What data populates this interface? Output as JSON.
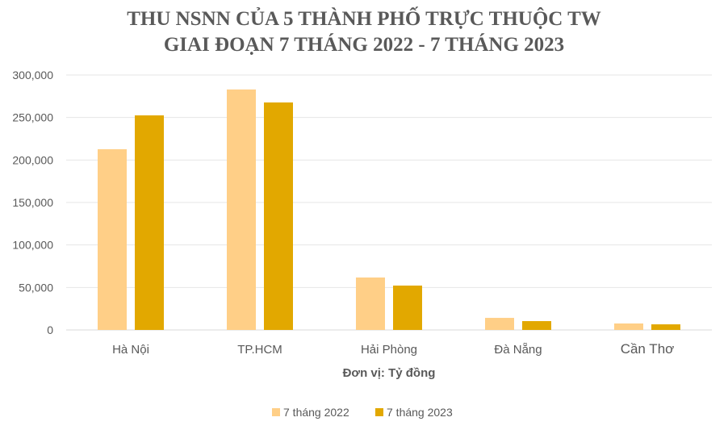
{
  "chart_data": {
    "type": "bar",
    "title_line1": "THU NSNN CỦA 5 THÀNH PHỐ TRỰC THUỘC TW",
    "title_line2": "GIAI ĐOẠN 7 THÁNG 2022 - 7 THÁNG 2023",
    "xlabel": "Đơn vị: Tỷ đồng",
    "ylabel": "",
    "ylim": [
      0,
      300000
    ],
    "yticks": [
      "0",
      "50,000",
      "100,000",
      "150,000",
      "200,000",
      "250,000",
      "300,000"
    ],
    "grid": true,
    "legend_position": "bottom",
    "categories": [
      "Hà Nội",
      "TP.HCM",
      "Hải Phòng",
      "Đà Nẵng",
      "Cần Thơ"
    ],
    "series": [
      {
        "name": "7 tháng 2022",
        "color": "#FFCF87",
        "values": [
          212700,
          283000,
          61700,
          14200,
          7600
        ]
      },
      {
        "name": "7 tháng 2023",
        "color": "#E2A800",
        "values": [
          252500,
          267700,
          52200,
          10400,
          6600
        ]
      }
    ]
  }
}
